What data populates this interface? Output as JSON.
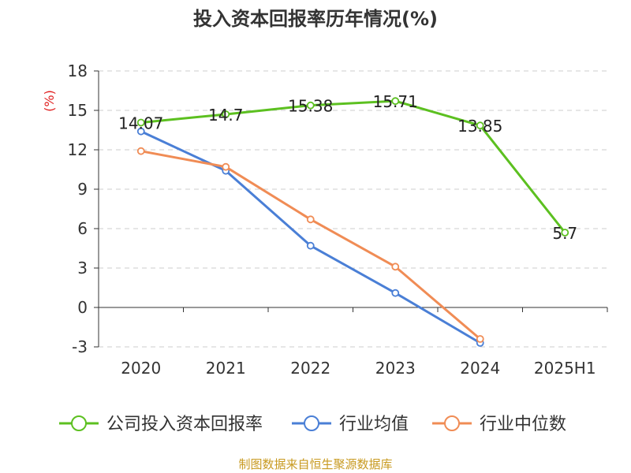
{
  "chart_data": {
    "type": "line",
    "title": "投入资本回报率历年情况(%)",
    "ylabel": "(%)",
    "ylim": [
      -3,
      18
    ],
    "yticks": [
      "18",
      "15",
      "12",
      "9",
      "6",
      "3",
      "0",
      "-3"
    ],
    "categories": [
      "2020",
      "2021",
      "2022",
      "2023",
      "2024",
      "2025H1"
    ],
    "grid": true,
    "legend_position": "bottom",
    "series": [
      {
        "name": "公司投入资本回报率",
        "color": "#5cc020",
        "values": [
          14.07,
          14.7,
          15.38,
          15.71,
          13.85,
          5.7
        ],
        "labels": [
          "14.07",
          "14.7",
          "15.38",
          "15.71",
          "13.85",
          "5.7"
        ]
      },
      {
        "name": "行业均值",
        "color": "#4a7fd6",
        "values": [
          13.4,
          10.4,
          4.7,
          1.1,
          -2.7,
          null
        ]
      },
      {
        "name": "行业中位数",
        "color": "#f08c55",
        "values": [
          11.9,
          10.7,
          6.7,
          3.1,
          -2.4,
          null
        ]
      }
    ]
  },
  "source_text": "制图数据来自恒生聚源数据库",
  "colors": {
    "axis": "#333333",
    "grid": "#cccccc",
    "unit": "#e02020",
    "source": "#c89a20"
  }
}
